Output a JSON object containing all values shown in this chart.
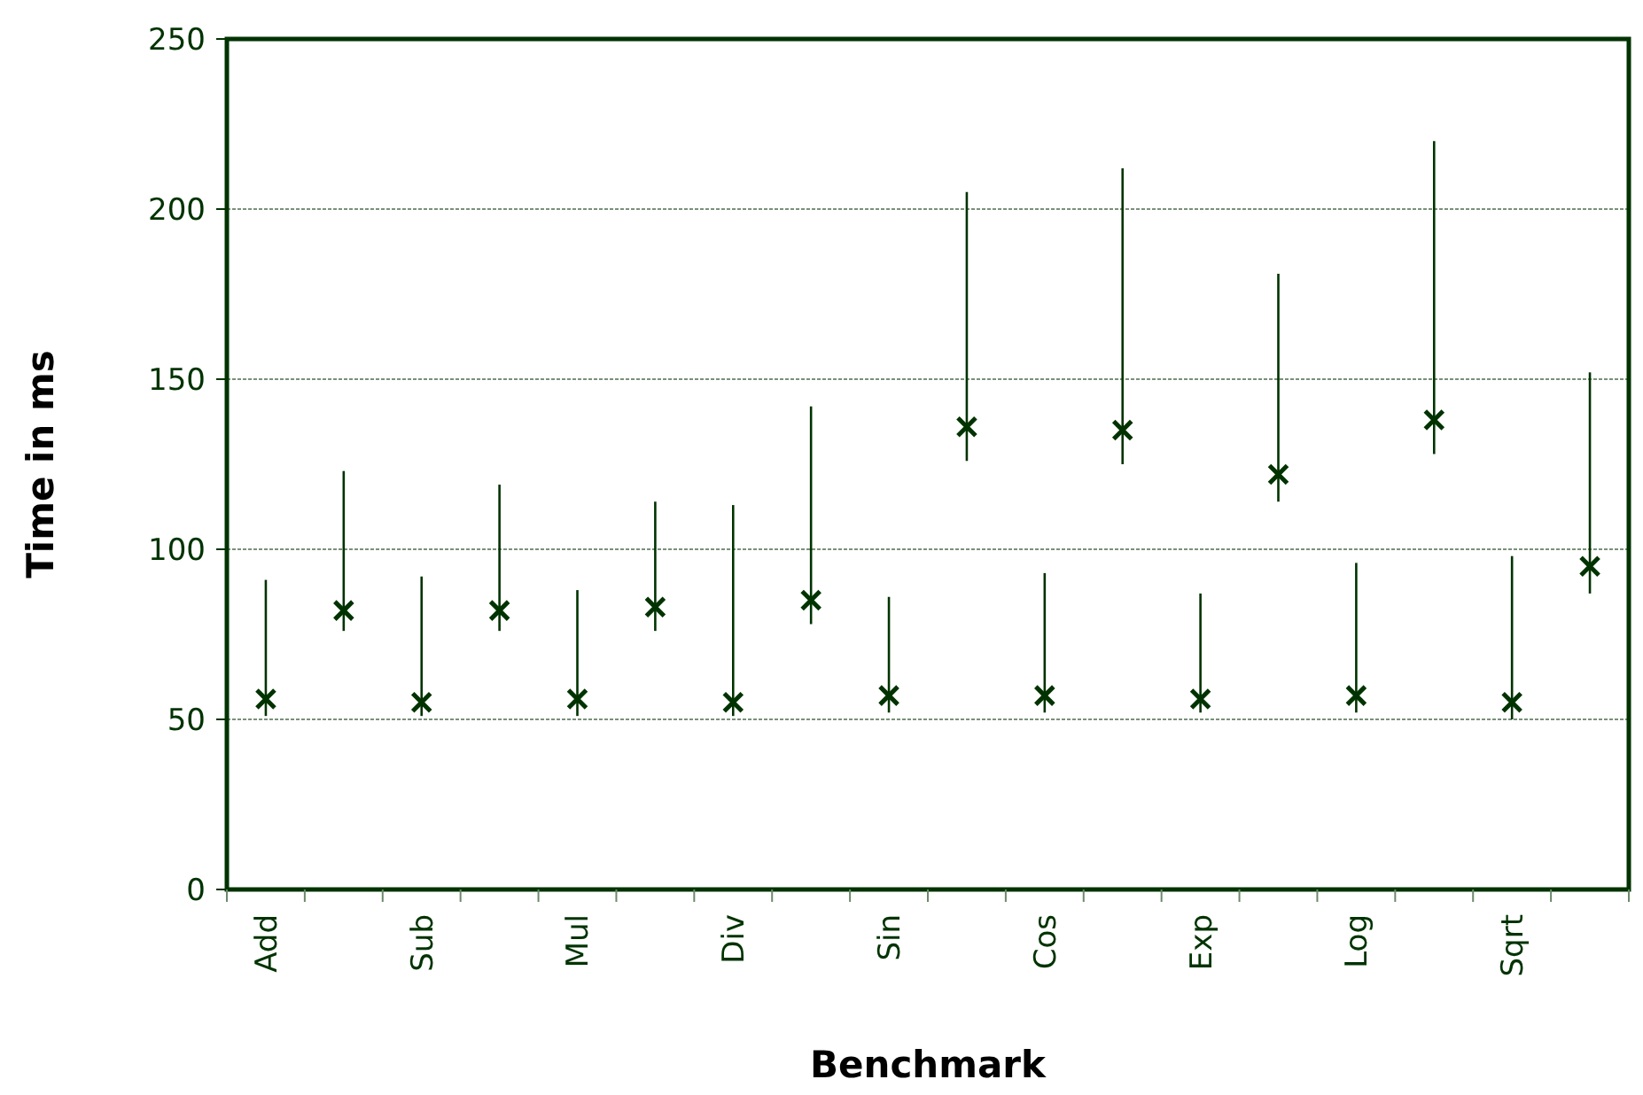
{
  "chart_data": {
    "type": "scatter",
    "xlabel": "Benchmark",
    "ylabel": "Time in ms",
    "categories": [
      "Add",
      null,
      "Sub",
      null,
      "Mul",
      null,
      "Div",
      null,
      "Sin",
      null,
      "Cos",
      null,
      "Exp",
      null,
      "Log",
      null,
      "Sqrt",
      null
    ],
    "values": [
      56,
      82,
      55,
      82,
      56,
      83,
      55,
      85,
      57,
      136,
      57,
      135,
      56,
      122,
      57,
      138,
      55,
      95
    ],
    "errors": [
      [
        51,
        91
      ],
      [
        76,
        123
      ],
      [
        51,
        92
      ],
      [
        76,
        119
      ],
      [
        51,
        88
      ],
      [
        76,
        114
      ],
      [
        51,
        113
      ],
      [
        78,
        142
      ],
      [
        52,
        86
      ],
      [
        126,
        205
      ],
      [
        52,
        93
      ],
      [
        125,
        212
      ],
      [
        52,
        87
      ],
      [
        114,
        181
      ],
      [
        52,
        96
      ],
      [
        128,
        220
      ],
      [
        50,
        98
      ],
      [
        87,
        152
      ]
    ],
    "color": "#003300",
    "marker": "cross",
    "grid": "y",
    "ylim": [
      0,
      250
    ],
    "yticks": [
      0,
      50,
      100,
      150,
      200,
      250
    ]
  }
}
